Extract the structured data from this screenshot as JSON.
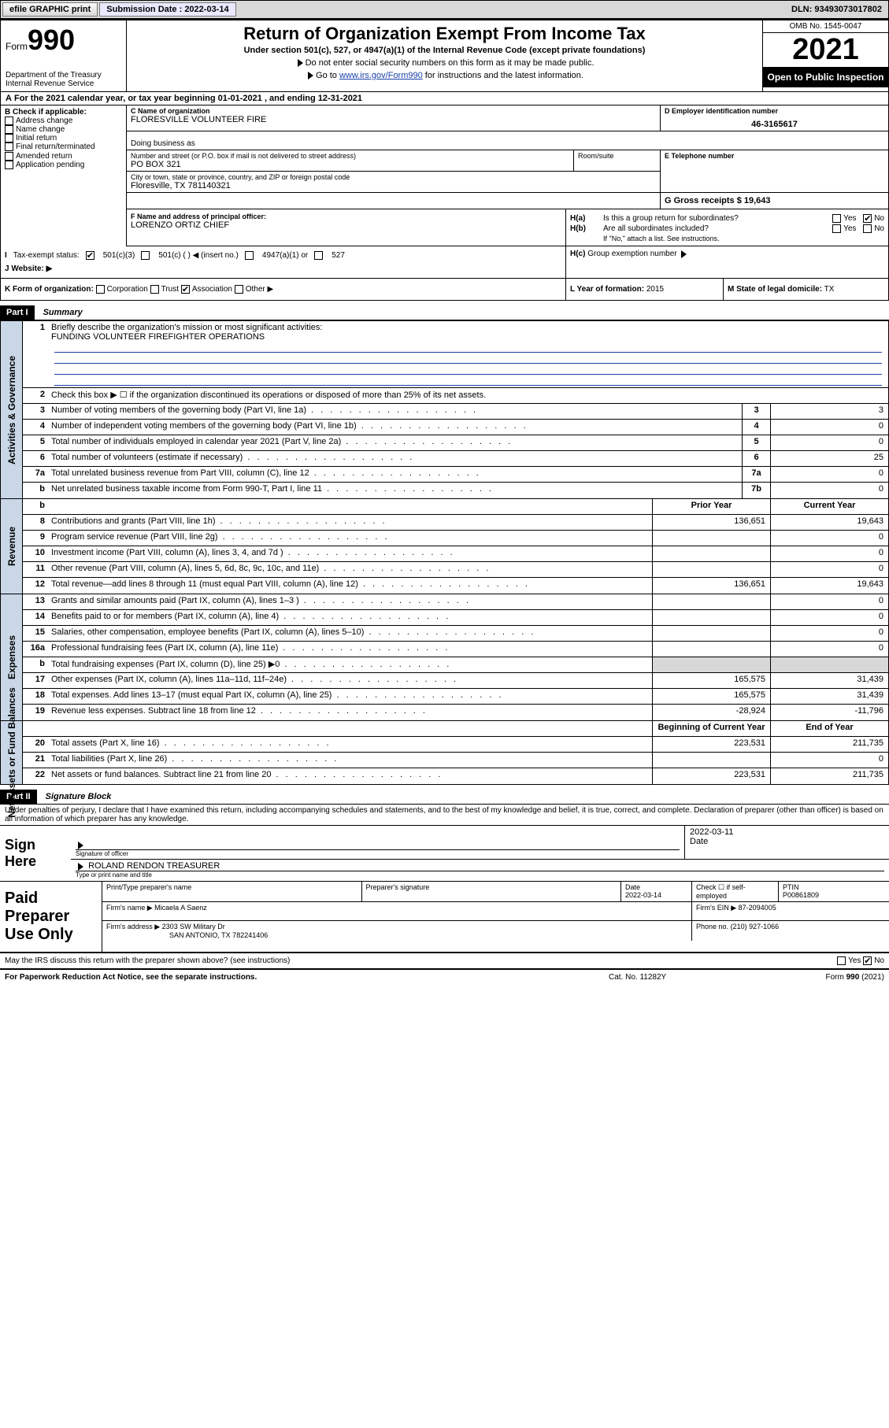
{
  "topbar": {
    "efile": "efile GRAPHIC print",
    "submission_label": "Submission Date : 2022-03-14",
    "dln": "DLN: 93493073017802"
  },
  "header": {
    "form_prefix": "Form",
    "form_no": "990",
    "dept": "Department of the Treasury\nInternal Revenue Service",
    "title": "Return of Organization Exempt From Income Tax",
    "subtitle": "Under section 501(c), 527, or 4947(a)(1) of the Internal Revenue Code (except private foundations)",
    "note1": "Do not enter social security numbers on this form as it may be made public.",
    "note2_pre": "Go to ",
    "note2_link": "www.irs.gov/Form990",
    "note2_post": " for instructions and the latest information.",
    "omb": "OMB No. 1545-0047",
    "year": "2021",
    "open": "Open to Public Inspection"
  },
  "sectionA": "For the 2021 calendar year, or tax year beginning 01-01-2021   , and ending 12-31-2021",
  "colB": {
    "label": "B Check if applicable:",
    "items": [
      "Address change",
      "Name change",
      "Initial return",
      "Final return/terminated",
      "Amended return",
      "Application pending"
    ]
  },
  "org": {
    "c_label": "C Name of organization",
    "name": "FLORESVILLE VOLUNTEER FIRE",
    "dba_label": "Doing business as",
    "street_label": "Number and street (or P.O. box if mail is not delivered to street address)",
    "room_label": "Room/suite",
    "street": "PO BOX 321",
    "city_label": "City or town, state or province, country, and ZIP or foreign postal code",
    "city": "Floresville, TX  781140321",
    "d_label": "D Employer identification number",
    "ein": "46-3165617",
    "e_label": "E Telephone number",
    "g_label": "G Gross receipts $",
    "gross": "19,643",
    "f_label": "F Name and address of principal officer:",
    "officer": "LORENZO ORTIZ CHIEF"
  },
  "H": {
    "a": "Is this a group return for subordinates?",
    "b": "Are all subordinates included?",
    "b_note": "If \"No,\" attach a list. See instructions.",
    "c": "Group exemption number",
    "yes": "Yes",
    "no": "No"
  },
  "I": {
    "label": "Tax-exempt status:",
    "opts": [
      "501(c)(3)",
      "501(c) (  ) ◀ (insert no.)",
      "4947(a)(1) or",
      "527"
    ]
  },
  "J": {
    "label": "Website: ▶"
  },
  "K": {
    "label": "K Form of organization:",
    "opts": [
      "Corporation",
      "Trust",
      "Association",
      "Other ▶"
    ],
    "checked": 2
  },
  "L": {
    "label": "L Year of formation:",
    "val": "2015"
  },
  "M": {
    "label": "M State of legal domicile:",
    "val": "TX"
  },
  "part1": {
    "bar": "Part I",
    "title": "Summary",
    "q1_label": "Briefly describe the organization's mission or most significant activities:",
    "q1_val": "FUNDING VOLUNTEER FIREFIGHTER OPERATIONS",
    "q2": "Check this box ▶ ☐  if the organization discontinued its operations or disposed of more than 25% of its net assets.",
    "rows_gov": [
      {
        "n": "3",
        "t": "Number of voting members of the governing body (Part VI, line 1a)",
        "box": "3",
        "v": "3"
      },
      {
        "n": "4",
        "t": "Number of independent voting members of the governing body (Part VI, line 1b)",
        "box": "4",
        "v": "0"
      },
      {
        "n": "5",
        "t": "Total number of individuals employed in calendar year 2021 (Part V, line 2a)",
        "box": "5",
        "v": "0"
      },
      {
        "n": "6",
        "t": "Total number of volunteers (estimate if necessary)",
        "box": "6",
        "v": "25"
      },
      {
        "n": "7a",
        "t": "Total unrelated business revenue from Part VIII, column (C), line 12",
        "box": "7a",
        "v": "0"
      },
      {
        "n": "b",
        "t": "Net unrelated business taxable income from Form 990-T, Part I, line 11",
        "box": "7b",
        "v": "0"
      }
    ],
    "hdr_prior": "Prior Year",
    "hdr_curr": "Current Year",
    "rows_rev": [
      {
        "n": "8",
        "t": "Contributions and grants (Part VIII, line 1h)",
        "p": "136,651",
        "c": "19,643"
      },
      {
        "n": "9",
        "t": "Program service revenue (Part VIII, line 2g)",
        "p": "",
        "c": "0"
      },
      {
        "n": "10",
        "t": "Investment income (Part VIII, column (A), lines 3, 4, and 7d )",
        "p": "",
        "c": "0"
      },
      {
        "n": "11",
        "t": "Other revenue (Part VIII, column (A), lines 5, 6d, 8c, 9c, 10c, and 11e)",
        "p": "",
        "c": "0"
      },
      {
        "n": "12",
        "t": "Total revenue—add lines 8 through 11 (must equal Part VIII, column (A), line 12)",
        "p": "136,651",
        "c": "19,643"
      }
    ],
    "rows_exp": [
      {
        "n": "13",
        "t": "Grants and similar amounts paid (Part IX, column (A), lines 1–3 )",
        "p": "",
        "c": "0"
      },
      {
        "n": "14",
        "t": "Benefits paid to or for members (Part IX, column (A), line 4)",
        "p": "",
        "c": "0"
      },
      {
        "n": "15",
        "t": "Salaries, other compensation, employee benefits (Part IX, column (A), lines 5–10)",
        "p": "",
        "c": "0"
      },
      {
        "n": "16a",
        "t": "Professional fundraising fees (Part IX, column (A), line 11e)",
        "p": "",
        "c": "0"
      },
      {
        "n": "b",
        "t": "Total fundraising expenses (Part IX, column (D), line 25) ▶0",
        "p": "shade",
        "c": "shade"
      },
      {
        "n": "17",
        "t": "Other expenses (Part IX, column (A), lines 11a–11d, 11f–24e)",
        "p": "165,575",
        "c": "31,439"
      },
      {
        "n": "18",
        "t": "Total expenses. Add lines 13–17 (must equal Part IX, column (A), line 25)",
        "p": "165,575",
        "c": "31,439"
      },
      {
        "n": "19",
        "t": "Revenue less expenses. Subtract line 18 from line 12",
        "p": "-28,924",
        "c": "-11,796"
      }
    ],
    "hdr_beg": "Beginning of Current Year",
    "hdr_end": "End of Year",
    "rows_net": [
      {
        "n": "20",
        "t": "Total assets (Part X, line 16)",
        "p": "223,531",
        "c": "211,735"
      },
      {
        "n": "21",
        "t": "Total liabilities (Part X, line 26)",
        "p": "",
        "c": "0"
      },
      {
        "n": "22",
        "t": "Net assets or fund balances. Subtract line 21 from line 20",
        "p": "223,531",
        "c": "211,735"
      }
    ],
    "vtabs": {
      "gov": "Activities & Governance",
      "rev": "Revenue",
      "exp": "Expenses",
      "net": "Net Assets or Fund Balances"
    }
  },
  "part2": {
    "bar": "Part II",
    "title": "Signature Block",
    "decl": "Under penalties of perjury, I declare that I have examined this return, including accompanying schedules and statements, and to the best of my knowledge and belief, it is true, correct, and complete. Declaration of preparer (other than officer) is based on all information of which preparer has any knowledge.",
    "sign_here": "Sign Here",
    "sig_officer_lab": "Signature of officer",
    "sig_date": "2022-03-11",
    "date_lab": "Date",
    "officer_name": "ROLAND RENDON TREASURER",
    "officer_name_lab": "Type or print name and title",
    "paid": "Paid Preparer Use Only",
    "prep_name_lab": "Print/Type preparer's name",
    "prep_sig_lab": "Preparer's signature",
    "prep_date_lab": "Date",
    "prep_date": "2022-03-14",
    "prep_check_lab": "Check ☐ if self-employed",
    "ptin_lab": "PTIN",
    "ptin": "P00861809",
    "firm_name_lab": "Firm's name ▶",
    "firm_name": "Micaela A Saenz",
    "firm_ein_lab": "Firm's EIN ▶",
    "firm_ein": "87-2094005",
    "firm_addr_lab": "Firm's address ▶",
    "firm_addr1": "2303 SW Military Dr",
    "firm_addr2": "SAN ANTONIO, TX  782241406",
    "firm_phone_lab": "Phone no.",
    "firm_phone": "(210) 927-1066",
    "discuss": "May the IRS discuss this return with the preparer shown above? (see instructions)"
  },
  "footer": {
    "pra": "For Paperwork Reduction Act Notice, see the separate instructions.",
    "cat": "Cat. No. 11282Y",
    "form": "Form 990 (2021)"
  }
}
